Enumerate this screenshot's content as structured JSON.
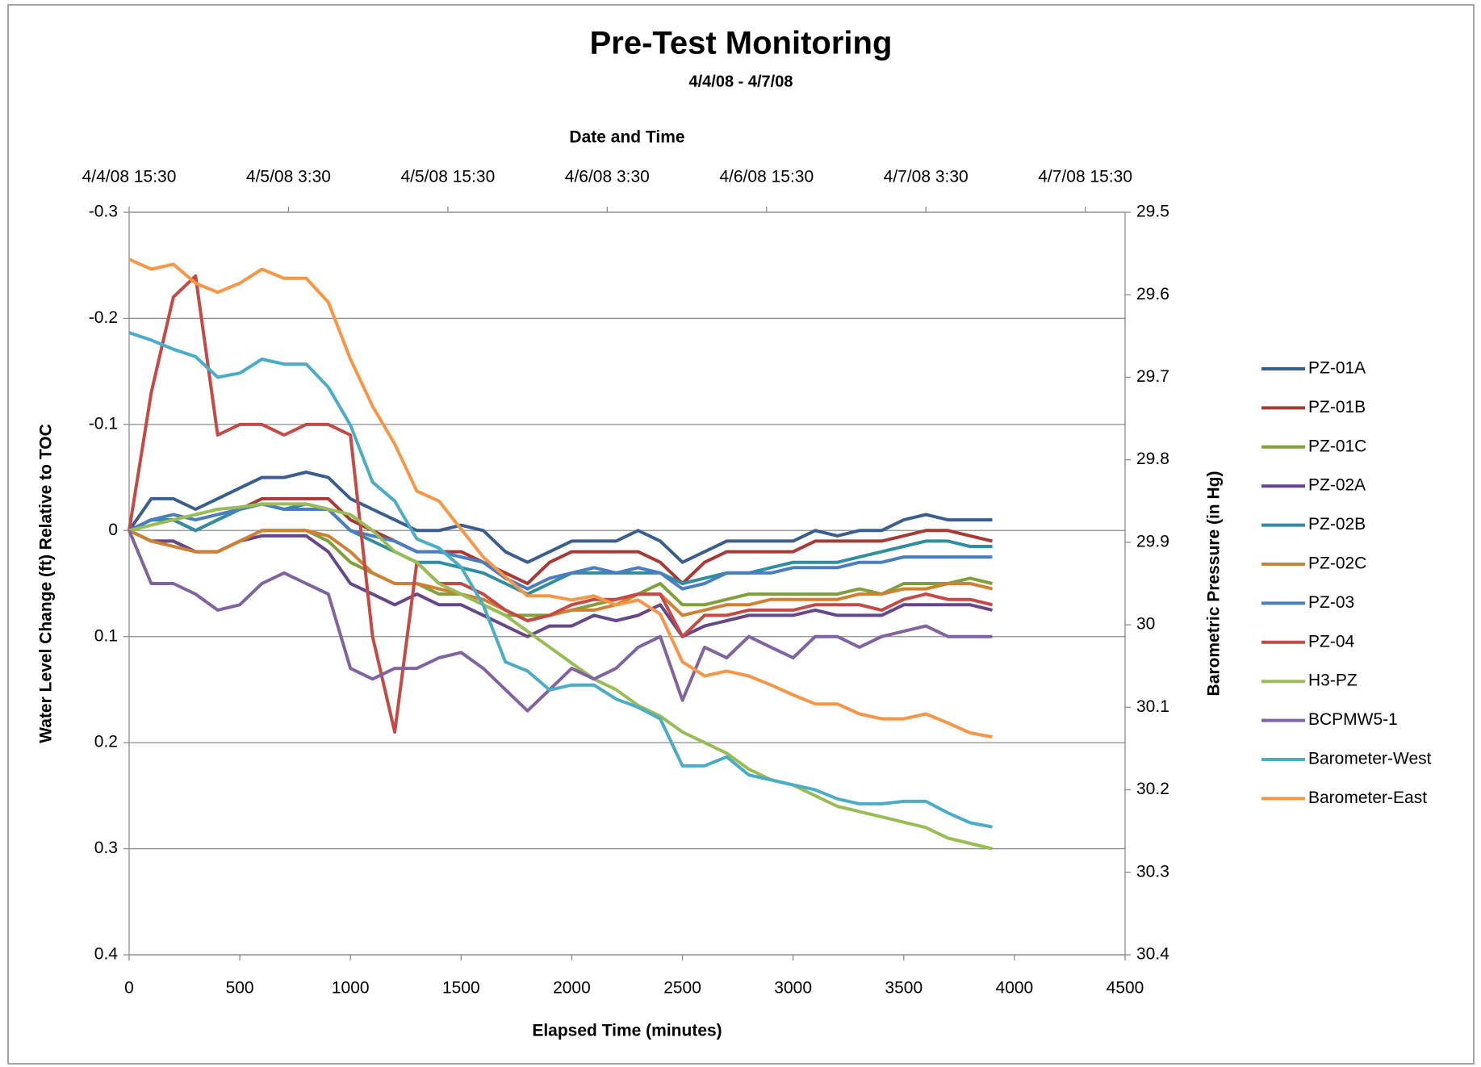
{
  "chart_data": {
    "type": "line",
    "title": "Pre-Test Monitoring",
    "subtitle": "4/4/08 - 4/7/08",
    "xlabel": "Elapsed Time (minutes)",
    "ylabel": "Water Level Change (ft) Relative to TOC",
    "y2label": "Barometric Pressure (in Hg)",
    "x2label": "Date and Time",
    "xlim": [
      0,
      4500
    ],
    "xticks": [
      0,
      500,
      1000,
      1500,
      2000,
      2500,
      3000,
      3500,
      4000,
      4500
    ],
    "x2lim": [
      0,
      4500
    ],
    "x2ticks": [
      {
        "value": 0,
        "label": "4/4/08 15:30"
      },
      {
        "value": 720,
        "label": "4/5/08 3:30"
      },
      {
        "value": 1440,
        "label": "4/5/08 15:30"
      },
      {
        "value": 2160,
        "label": "4/6/08 3:30"
      },
      {
        "value": 2880,
        "label": "4/6/08 15:30"
      },
      {
        "value": 3600,
        "label": "4/7/08 3:30"
      },
      {
        "value": 4320,
        "label": "4/7/08 15:30"
      }
    ],
    "ylim": [
      -0.3,
      0.4
    ],
    "yticks": [
      -0.3,
      -0.2,
      -0.1,
      0,
      0.1,
      0.2,
      0.3,
      0.4
    ],
    "y_inverted": true,
    "y2lim": [
      29.5,
      30.4
    ],
    "y2ticks": [
      29.5,
      29.6,
      29.7,
      29.8,
      29.9,
      30,
      30.1,
      30.2,
      30.3,
      30.4
    ],
    "y2_inverted": true,
    "grid": true,
    "legend": "right",
    "x": [
      0,
      100,
      200,
      300,
      400,
      500,
      600,
      700,
      800,
      900,
      1000,
      1100,
      1200,
      1300,
      1400,
      1500,
      1600,
      1700,
      1800,
      1900,
      2000,
      2100,
      2200,
      2300,
      2400,
      2500,
      2600,
      2700,
      2800,
      2900,
      3000,
      3100,
      3200,
      3300,
      3400,
      3500,
      3600,
      3700,
      3800,
      3900
    ],
    "series": [
      {
        "name": "PZ-01A",
        "color": "#3a5f8f",
        "values": [
          0,
          -0.03,
          -0.03,
          -0.02,
          -0.03,
          -0.04,
          -0.05,
          -0.05,
          -0.055,
          -0.05,
          -0.03,
          -0.02,
          -0.01,
          0,
          0,
          -0.005,
          0,
          0.02,
          0.03,
          0.02,
          0.01,
          0.01,
          0.01,
          0,
          0.01,
          0.03,
          0.02,
          0.01,
          0.01,
          0.01,
          0.01,
          0,
          0.005,
          0,
          0,
          -0.01,
          -0.015,
          -0.01,
          -0.01,
          -0.01
        ]
      },
      {
        "name": "PZ-01B",
        "color": "#a73a35",
        "values": [
          0,
          -0.01,
          -0.01,
          0,
          -0.01,
          -0.02,
          -0.03,
          -0.03,
          -0.03,
          -0.03,
          -0.01,
          0,
          0.01,
          0.02,
          0.02,
          0.02,
          0.03,
          0.04,
          0.05,
          0.03,
          0.02,
          0.02,
          0.02,
          0.02,
          0.03,
          0.05,
          0.03,
          0.02,
          0.02,
          0.02,
          0.02,
          0.01,
          0.01,
          0.01,
          0.01,
          0.005,
          0,
          0,
          0.005,
          0.01
        ]
      },
      {
        "name": "PZ-01C",
        "color": "#7fa03a",
        "values": [
          0,
          0.01,
          0.01,
          0.02,
          0.02,
          0.01,
          0,
          0,
          0,
          0.01,
          0.03,
          0.04,
          0.05,
          0.05,
          0.06,
          0.06,
          0.07,
          0.08,
          0.08,
          0.08,
          0.075,
          0.07,
          0.065,
          0.06,
          0.05,
          0.07,
          0.07,
          0.065,
          0.06,
          0.06,
          0.06,
          0.06,
          0.06,
          0.055,
          0.06,
          0.05,
          0.05,
          0.05,
          0.045,
          0.05
        ]
      },
      {
        "name": "PZ-02A",
        "color": "#65478a",
        "values": [
          0,
          0.01,
          0.01,
          0.02,
          0.02,
          0.01,
          0.005,
          0.005,
          0.005,
          0.02,
          0.05,
          0.06,
          0.07,
          0.06,
          0.07,
          0.07,
          0.08,
          0.09,
          0.1,
          0.09,
          0.09,
          0.08,
          0.085,
          0.08,
          0.07,
          0.1,
          0.09,
          0.085,
          0.08,
          0.08,
          0.08,
          0.075,
          0.08,
          0.08,
          0.08,
          0.07,
          0.07,
          0.07,
          0.07,
          0.075
        ]
      },
      {
        "name": "PZ-02B",
        "color": "#2f8ea1",
        "values": [
          0,
          -0.01,
          -0.01,
          0,
          -0.01,
          -0.02,
          -0.025,
          -0.02,
          -0.025,
          -0.02,
          0,
          0.01,
          0.02,
          0.03,
          0.03,
          0.035,
          0.04,
          0.05,
          0.06,
          0.05,
          0.04,
          0.04,
          0.04,
          0.04,
          0.04,
          0.05,
          0.045,
          0.04,
          0.04,
          0.035,
          0.03,
          0.03,
          0.03,
          0.025,
          0.02,
          0.015,
          0.01,
          0.01,
          0.015,
          0.015
        ]
      },
      {
        "name": "PZ-02C",
        "color": "#d17f32",
        "values": [
          0,
          0.01,
          0.015,
          0.02,
          0.02,
          0.01,
          0,
          0,
          0,
          0.005,
          0.02,
          0.04,
          0.05,
          0.05,
          0.055,
          0.06,
          0.065,
          0.075,
          0.085,
          0.08,
          0.075,
          0.075,
          0.07,
          0.06,
          0.06,
          0.08,
          0.075,
          0.07,
          0.07,
          0.065,
          0.065,
          0.065,
          0.065,
          0.06,
          0.06,
          0.055,
          0.055,
          0.05,
          0.05,
          0.055
        ]
      },
      {
        "name": "PZ-03",
        "color": "#4a7ec2",
        "values": [
          0,
          -0.01,
          -0.015,
          -0.01,
          -0.015,
          -0.02,
          -0.025,
          -0.02,
          -0.02,
          -0.02,
          0,
          0.005,
          0.01,
          0.02,
          0.02,
          0.025,
          0.03,
          0.045,
          0.055,
          0.045,
          0.04,
          0.035,
          0.04,
          0.035,
          0.04,
          0.055,
          0.05,
          0.04,
          0.04,
          0.04,
          0.035,
          0.035,
          0.035,
          0.03,
          0.03,
          0.025,
          0.025,
          0.025,
          0.025,
          0.025
        ]
      },
      {
        "name": "PZ-04",
        "color": "#c54a45",
        "values": [
          0,
          -0.13,
          -0.22,
          -0.24,
          -0.09,
          -0.1,
          -0.1,
          -0.09,
          -0.1,
          -0.1,
          -0.09,
          0.1,
          0.19,
          0.03,
          0.05,
          0.05,
          0.06,
          0.075,
          0.085,
          0.08,
          0.07,
          0.065,
          0.065,
          0.06,
          0.06,
          0.1,
          0.08,
          0.08,
          0.075,
          0.075,
          0.075,
          0.07,
          0.07,
          0.07,
          0.075,
          0.065,
          0.06,
          0.065,
          0.065,
          0.07
        ]
      },
      {
        "name": "H3-PZ",
        "color": "#98bd55",
        "values": [
          0,
          -0.005,
          -0.01,
          -0.015,
          -0.02,
          -0.022,
          -0.025,
          -0.025,
          -0.025,
          -0.02,
          -0.015,
          0,
          0.02,
          0.03,
          0.05,
          0.06,
          0.07,
          0.08,
          0.095,
          0.11,
          0.125,
          0.14,
          0.15,
          0.165,
          0.175,
          0.19,
          0.2,
          0.21,
          0.225,
          0.235,
          0.24,
          0.25,
          0.26,
          0.265,
          0.27,
          0.275,
          0.28,
          0.29,
          0.295,
          0.3
        ]
      },
      {
        "name": "BCPMW5-1",
        "color": "#8064a2",
        "values": [
          0,
          0.05,
          0.05,
          0.06,
          0.075,
          0.07,
          0.05,
          0.04,
          0.05,
          0.06,
          0.13,
          0.14,
          0.13,
          0.13,
          0.12,
          0.115,
          0.13,
          0.15,
          0.17,
          0.15,
          0.13,
          0.14,
          0.13,
          0.11,
          0.1,
          0.16,
          0.11,
          0.12,
          0.1,
          0.11,
          0.12,
          0.1,
          0.1,
          0.11,
          0.1,
          0.095,
          0.09,
          0.1,
          0.1,
          0.1
        ]
      },
      {
        "name": "Barometer-West",
        "color": "#4bacc6",
        "axis": "y2",
        "values": [
          29.646,
          29.655,
          29.666,
          29.675,
          29.7,
          29.695,
          29.678,
          29.684,
          29.684,
          29.712,
          29.758,
          29.827,
          29.85,
          29.896,
          29.907,
          29.93,
          29.976,
          30.045,
          30.056,
          30.079,
          30.073,
          30.073,
          30.09,
          30.1,
          30.114,
          30.171,
          30.171,
          30.16,
          30.182,
          30.188,
          30.194,
          30.2,
          30.211,
          30.217,
          30.217,
          30.214,
          30.214,
          30.228,
          30.24,
          30.245
        ]
      },
      {
        "name": "Barometer-East",
        "color": "#f79646",
        "axis": "y2",
        "values": [
          29.557,
          29.569,
          29.563,
          29.586,
          29.597,
          29.586,
          29.569,
          29.58,
          29.58,
          29.609,
          29.678,
          29.735,
          29.781,
          29.838,
          29.85,
          29.884,
          29.918,
          29.942,
          29.965,
          29.965,
          29.97,
          29.965,
          29.976,
          29.97,
          29.987,
          30.045,
          30.062,
          30.056,
          30.062,
          30.073,
          30.085,
          30.096,
          30.096,
          30.108,
          30.114,
          30.114,
          30.108,
          30.119,
          30.131,
          30.136
        ]
      }
    ]
  }
}
